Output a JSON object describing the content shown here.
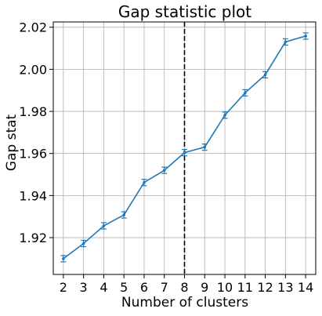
{
  "chart_data": {
    "type": "line",
    "title": "Gap statistic plot",
    "xlabel": "Number of clusters",
    "ylabel": "Gap stat",
    "x": [
      2,
      3,
      4,
      5,
      6,
      7,
      8,
      9,
      10,
      11,
      12,
      13,
      14
    ],
    "series": [
      {
        "values": [
          1.91,
          1.9172,
          1.9256,
          1.9308,
          1.9462,
          1.952,
          1.9604,
          1.963,
          1.9782,
          1.9888,
          1.9974,
          2.013,
          2.0158
        ],
        "error": [
          0.0015,
          0.0015,
          0.0015,
          0.0015,
          0.0015,
          0.0015,
          0.0015,
          0.0015,
          0.0015,
          0.0015,
          0.0015,
          0.0015,
          0.0015
        ],
        "color": "#1f77b4"
      }
    ],
    "xlim": [
      1.5,
      14.5
    ],
    "ylim": [
      1.9025,
      2.0225
    ],
    "yticks": [
      "1.92",
      "1.94",
      "1.96",
      "1.98",
      "2.00",
      "2.02"
    ],
    "xticks": [
      "2",
      "3",
      "4",
      "5",
      "6",
      "7",
      "8",
      "9",
      "10",
      "11",
      "12",
      "13",
      "14"
    ],
    "vline": {
      "x": 8,
      "style": "dashed",
      "color": "#000000"
    },
    "grid": true
  }
}
